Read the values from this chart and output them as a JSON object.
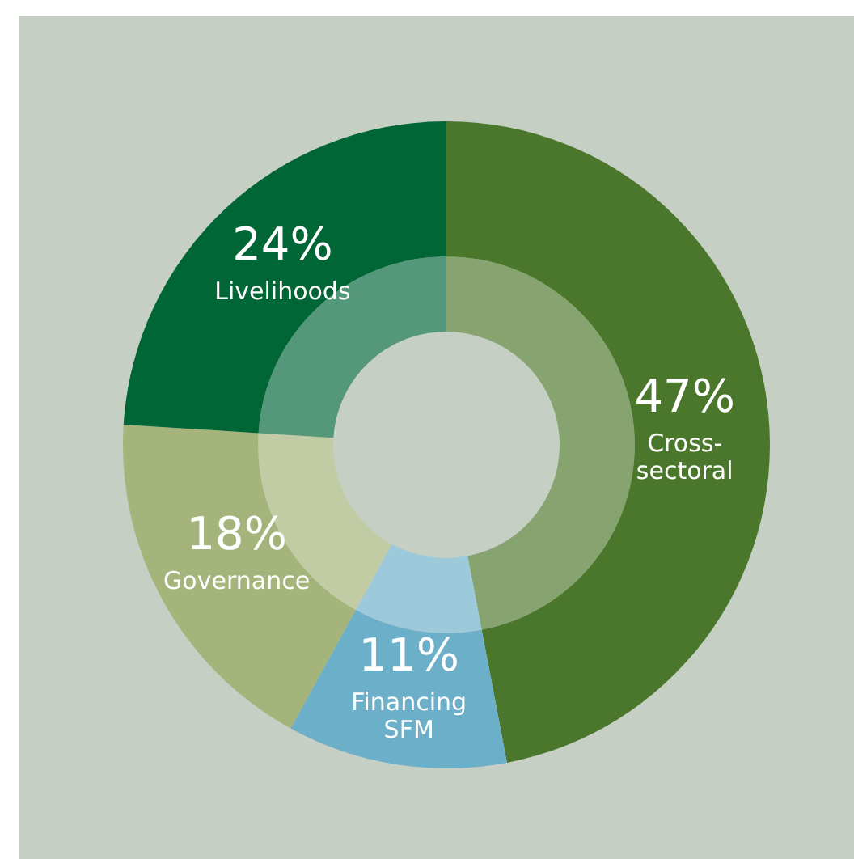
{
  "chart_data": {
    "type": "donut",
    "categories": [
      "Cross-sectoral",
      "Financing SFM",
      "Governance",
      "Livelihoods"
    ],
    "series": [
      {
        "values": [
          47,
          11,
          18,
          24
        ],
        "colors": [
          "#4a772c",
          "#6cafc8",
          "#a4b47b",
          "#006636"
        ],
        "value_labels": [
          "47%",
          "11%",
          "18%",
          "24%"
        ]
      },
      {
        "values": [
          47,
          11,
          18,
          24
        ],
        "colors": [
          "#87a470",
          "#9ccadb",
          "#c2cca4",
          "#55977a"
        ]
      }
    ],
    "legend": false
  }
}
